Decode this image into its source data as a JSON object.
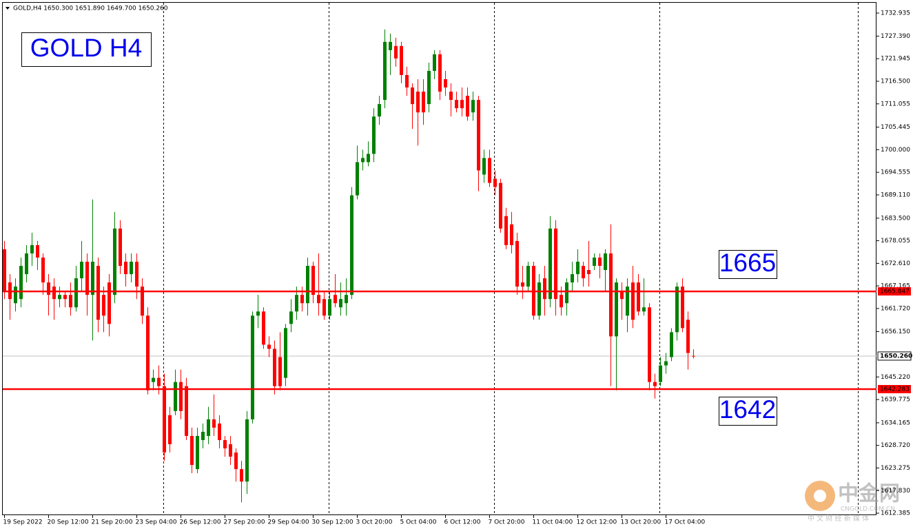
{
  "chart_data": {
    "type": "candlestick",
    "title": "GOLD,H4  1650.300 1651.890 1649.700 1650.260",
    "up_color": "#008000",
    "down_color": "#ff0000",
    "open": [
      1676,
      1668,
      1663,
      1664,
      1670,
      1675,
      1677,
      1674,
      1668,
      1667,
      1664,
      1665,
      1665,
      1662,
      1669,
      1673,
      1665,
      1672,
      1665,
      1668,
      1665,
      1681,
      1673,
      1670,
      1673,
      1667,
      1660,
      1644,
      1645,
      1643,
      1636,
      1637,
      1644,
      1643,
      1631,
      1623,
      1630,
      1631,
      1635,
      1634,
      1630,
      1629,
      1627,
      1623,
      1620,
      1635,
      1660,
      1661,
      1653,
      1652,
      1650,
      1645,
      1658,
      1661,
      1665,
      1663,
      1672,
      1665,
      1664,
      1660,
      1665,
      1662,
      1663,
      1665,
      1689,
      1697,
      1697,
      1699,
      1708,
      1712,
      1724,
      1725,
      1725,
      1718,
      1715,
      1714,
      1714,
      1711,
      1719,
      1723,
      1717,
      1714,
      1712,
      1712,
      1713,
      1709,
      1712,
      1694,
      1698,
      1693,
      1692,
      1684,
      1682,
      1678,
      1668,
      1667,
      1672,
      1660,
      1669,
      1664,
      1681,
      1665,
      1663,
      1668,
      1670,
      1672,
      1671,
      1672,
      1674,
      1671,
      1675,
      1655,
      1666,
      1660,
      1668,
      1668,
      1661,
      1662,
      1644,
      1644,
      1648,
      1650,
      1656,
      1667,
      1659,
      1650.3
    ],
    "high": [
      1678,
      1670,
      1669,
      1674,
      1677,
      1680,
      1678,
      1675,
      1670,
      1669,
      1667,
      1666,
      1668,
      1672,
      1678,
      1675,
      1688,
      1674,
      1667,
      1670,
      1685,
      1683,
      1675,
      1675,
      1675,
      1669,
      1662,
      1647,
      1648,
      1646,
      1638,
      1647,
      1647,
      1645,
      1633,
      1633,
      1634,
      1638,
      1641,
      1636,
      1631,
      1631,
      1628,
      1625,
      1637,
      1661,
      1665,
      1662,
      1655,
      1654,
      1656,
      1658,
      1664,
      1667,
      1667,
      1674,
      1673,
      1675,
      1666,
      1666,
      1670,
      1668,
      1669,
      1691,
      1701,
      1700,
      1702,
      1710,
      1713,
      1729,
      1728,
      1727,
      1726,
      1720,
      1716,
      1717,
      1717,
      1721,
      1724,
      1724,
      1719,
      1716,
      1714,
      1715,
      1715,
      1714,
      1713,
      1700,
      1700,
      1695,
      1693,
      1686,
      1685,
      1680,
      1672,
      1673,
      1673,
      1670,
      1672,
      1684,
      1683,
      1667,
      1669,
      1673,
      1676,
      1673,
      1678,
      1675,
      1675,
      1676,
      1682,
      1669,
      1668,
      1669,
      1672,
      1670,
      1669,
      1663,
      1646,
      1650,
      1651,
      1657,
      1668,
      1669,
      1661,
      1651.89
    ],
    "low": [
      1664,
      1659,
      1661,
      1662,
      1668,
      1672,
      1671,
      1665,
      1660,
      1659,
      1662,
      1662,
      1660,
      1661,
      1666,
      1660,
      1654,
      1656,
      1656,
      1655,
      1663,
      1670,
      1667,
      1668,
      1664,
      1658,
      1641,
      1642,
      1641,
      1625,
      1627,
      1636,
      1635,
      1630,
      1622,
      1622,
      1628,
      1629,
      1631,
      1628,
      1626,
      1624,
      1620,
      1615,
      1617,
      1634,
      1657,
      1652,
      1650,
      1641,
      1642,
      1643,
      1656,
      1659,
      1661,
      1660,
      1663,
      1660,
      1659,
      1659,
      1662,
      1660,
      1660,
      1664,
      1688,
      1695,
      1696,
      1697,
      1706,
      1710,
      1718,
      1720,
      1716,
      1713,
      1705,
      1701,
      1706,
      1709,
      1717,
      1712,
      1713,
      1708,
      1709,
      1708,
      1707,
      1707,
      1690,
      1692,
      1691,
      1689,
      1680,
      1676,
      1675,
      1665,
      1664,
      1666,
      1659,
      1659,
      1660,
      1662,
      1660,
      1660,
      1660,
      1666,
      1668,
      1667,
      1667,
      1671,
      1669,
      1666,
      1643,
      1642,
      1659,
      1656,
      1657,
      1660,
      1660,
      1642,
      1640,
      1643,
      1646,
      1649,
      1654,
      1656,
      1647,
      1649.7
    ],
    "close": [
      1666,
      1664,
      1667,
      1672,
      1675,
      1677,
      1674,
      1668,
      1665,
      1664,
      1665,
      1664,
      1662,
      1669,
      1673,
      1665,
      1673,
      1659,
      1660,
      1658,
      1681,
      1672,
      1670,
      1673,
      1667,
      1660,
      1642,
      1645,
      1643,
      1627,
      1629,
      1644,
      1637,
      1631,
      1624,
      1631,
      1632,
      1635,
      1633,
      1630,
      1628,
      1626,
      1623,
      1620,
      1635,
      1660,
      1661,
      1653,
      1652,
      1643,
      1643,
      1657,
      1661,
      1665,
      1663,
      1672,
      1665,
      1663,
      1660,
      1664,
      1663,
      1664,
      1665,
      1689,
      1697,
      1698,
      1699,
      1708,
      1711,
      1726,
      1726,
      1722,
      1718,
      1715,
      1711,
      1709,
      1709,
      1719,
      1723,
      1714,
      1715,
      1712,
      1710,
      1710,
      1708,
      1712,
      1695,
      1698,
      1692,
      1691,
      1681,
      1677,
      1677,
      1667,
      1667,
      1672,
      1660,
      1668,
      1664,
      1681,
      1664,
      1662,
      1668,
      1670,
      1673,
      1669,
      1670,
      1674,
      1672,
      1675,
      1655,
      1668,
      1664,
      1667,
      1659,
      1661,
      1662,
      1644,
      1643,
      1648,
      1649,
      1656,
      1667,
      1657,
      1651,
      1650.26
    ],
    "ylim": [
      1611.9,
      1736.09
    ],
    "yticks": [
      {
        "value": 1732.935,
        "label": "1732.935"
      },
      {
        "value": 1727.39,
        "label": "1727.390"
      },
      {
        "value": 1721.945,
        "label": "1721.945"
      },
      {
        "value": 1716.5,
        "label": "1716.500"
      },
      {
        "value": 1711.055,
        "label": "1711.055"
      },
      {
        "value": 1705.445,
        "label": "1705.445"
      },
      {
        "value": 1700,
        "label": "1700.000"
      },
      {
        "value": 1694.555,
        "label": "1694.555"
      },
      {
        "value": 1689.11,
        "label": "1689.110"
      },
      {
        "value": 1683.5,
        "label": "1683.500"
      },
      {
        "value": 1678.055,
        "label": "1678.055"
      },
      {
        "value": 1672.61,
        "label": "1672.610"
      },
      {
        "value": 1667.165,
        "label": "1667.165"
      },
      {
        "value": 1661.72,
        "label": "1661.720"
      },
      {
        "value": 1656.15,
        "label": "1656.150"
      },
      {
        "value": 1645.22,
        "label": "1645.220"
      },
      {
        "value": 1639.775,
        "label": "1639.775"
      },
      {
        "value": 1634.165,
        "label": "1634.165"
      },
      {
        "value": 1628.72,
        "label": "1628.720"
      },
      {
        "value": 1623.275,
        "label": "1623.275"
      },
      {
        "value": 1617.83,
        "label": "1617.830"
      },
      {
        "value": 1612.385,
        "label": "1612.385"
      }
    ],
    "xticks": [
      {
        "value": 0,
        "label": "19 Sep 2022"
      },
      {
        "value": 8,
        "label": "20 Sep 12:00"
      },
      {
        "value": 16,
        "label": "21 Sep 20:00"
      },
      {
        "value": 24,
        "label": "23 Sep 04:00"
      },
      {
        "value": 32,
        "label": "26 Sep 12:00"
      },
      {
        "value": 40,
        "label": "27 Sep 20:00"
      },
      {
        "value": 48,
        "label": "29 Sep 04:00"
      },
      {
        "value": 56,
        "label": "30 Sep 12:00"
      },
      {
        "value": 64,
        "label": "3 Oct 20:00"
      },
      {
        "value": 72,
        "label": "5 Oct 04:00"
      },
      {
        "value": 80,
        "label": "6 Oct 12:00"
      },
      {
        "value": 88,
        "label": "7 Oct 20:00"
      },
      {
        "value": 96,
        "label": "11 Oct 04:00"
      },
      {
        "value": 104,
        "label": "12 Oct 12:00"
      },
      {
        "value": 112,
        "label": "13 Oct 20:00"
      },
      {
        "value": 120,
        "label": "17 Oct 04:00"
      }
    ],
    "hlines": [
      {
        "value": 1665.847,
        "color": "#ff0000"
      },
      {
        "value": 1642.283,
        "color": "#ff0000"
      }
    ],
    "price_line": {
      "value": 1650.26,
      "label": "1650.260",
      "color": "#c0c0c0"
    },
    "annotations": [
      "GOLD H4",
      "1665",
      "1642"
    ],
    "watermark": [
      "中金网",
      "CNGOLD.COM.CN",
      "中 文 财 经 新 媒 体"
    ]
  }
}
